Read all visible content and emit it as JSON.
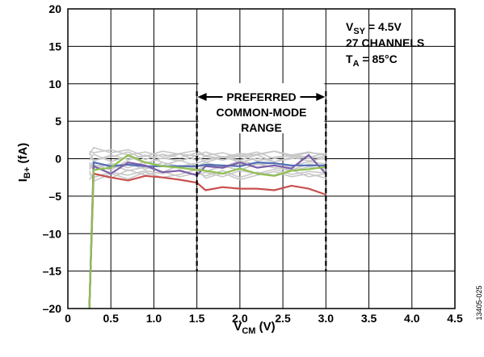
{
  "chart_data": {
    "type": "line",
    "xlabel": {
      "main": "V",
      "sub": "CM",
      "unit": " (V)"
    },
    "ylabel": {
      "main": "I",
      "sub": "B+",
      "unit": " (fA)"
    },
    "xlim": [
      0,
      4.5
    ],
    "ylim": [
      -20,
      20
    ],
    "x_ticks": [
      0,
      0.5,
      1.0,
      1.5,
      2.0,
      2.5,
      3.0,
      3.5,
      4.0,
      4.5
    ],
    "x_tick_labels": [
      "0",
      "0.5",
      "1.0",
      "1.5",
      "2.0",
      "2.5",
      "3.0",
      "3.5",
      "4.0",
      "4.5"
    ],
    "y_ticks": [
      -20,
      -15,
      -10,
      -5,
      0,
      5,
      10,
      15,
      20
    ],
    "y_tick_labels": [
      "–20",
      "–15",
      "–10",
      "–5",
      "0",
      "5",
      "10",
      "15",
      "20"
    ],
    "grid": true,
    "conditions": {
      "vsy": {
        "main": "V",
        "sub": "SY",
        "rest": " = 4.5V"
      },
      "channels": "27 CHANNELS",
      "ta": {
        "main": "T",
        "sub": "A",
        "rest": " = 85°C"
      }
    },
    "preferred_range": {
      "x": [
        1.5,
        3.0
      ],
      "y_top": 9.0,
      "y_bottom": -15.0,
      "lines": [
        "PREFERRED",
        "COMMON-MODE",
        "RANGE"
      ]
    },
    "figure_number": "13405-025",
    "x": [
      0.25,
      0.3,
      0.5,
      0.7,
      0.9,
      1.1,
      1.3,
      1.5,
      1.6,
      1.8,
      2.0,
      2.2,
      2.4,
      2.6,
      2.8,
      3.0
    ],
    "series": [
      {
        "color": "#c8c8c8",
        "values": [
          -1.2,
          -0.8,
          -1.5,
          -0.2,
          0.5,
          -0.5,
          -1.0,
          -0.6,
          -0.2,
          0.3,
          -0.5,
          0.1,
          -0.4,
          0.2,
          -0.3,
          0.1
        ]
      },
      {
        "color": "#c8c8c8",
        "values": [
          -2.0,
          -2.5,
          -1.8,
          -2.2,
          -1.6,
          -2.0,
          -1.5,
          -2.2,
          -1.8,
          -2.4,
          -1.6,
          -2.0,
          -1.4,
          -2.1,
          -1.7,
          -1.9
        ]
      },
      {
        "color": "#c8c8c8",
        "values": [
          0.5,
          1.5,
          0.8,
          1.2,
          0.3,
          1.0,
          0.6,
          0.4,
          0.9,
          0.2,
          0.7,
          0.5,
          1.0,
          0.3,
          0.8,
          0.6
        ]
      },
      {
        "color": "#c8c8c8",
        "values": [
          -0.5,
          -1.5,
          -0.6,
          -1.2,
          -0.4,
          -0.9,
          -0.2,
          -1.0,
          -0.5,
          -1.1,
          -0.3,
          -0.8,
          -0.6,
          -1.0,
          -0.4,
          -0.7
        ]
      },
      {
        "color": "#c8c8c8",
        "values": [
          -2.8,
          -2.0,
          -2.6,
          -1.5,
          -2.2,
          -1.7,
          -2.4,
          -1.9,
          -2.3,
          -1.6,
          -2.5,
          -1.8,
          -2.2,
          -1.5,
          -2.4,
          -2.0
        ]
      },
      {
        "color": "#c8c8c8",
        "values": [
          0.2,
          -0.3,
          0.5,
          -0.1,
          0.4,
          0.0,
          0.6,
          -0.2,
          0.3,
          0.1,
          0.5,
          -0.3,
          0.2,
          0.4,
          0.0,
          0.3
        ]
      },
      {
        "color": "#c8c8c8",
        "values": [
          -1.0,
          -0.4,
          -1.2,
          -0.7,
          -1.4,
          -0.5,
          -1.1,
          -1.6,
          -0.8,
          -1.3,
          -0.6,
          -1.2,
          -0.9,
          -1.5,
          -0.7,
          -1.0
        ]
      },
      {
        "color": "#c8c8c8",
        "values": [
          1.0,
          0.8,
          1.2,
          0.5,
          0.9,
          0.3,
          0.7,
          1.1,
          0.4,
          0.8,
          0.2,
          0.6,
          1.0,
          0.5,
          0.9,
          0.4
        ]
      },
      {
        "color": "#c8c8c8",
        "values": [
          -1.6,
          -3.0,
          -2.0,
          -2.7,
          -1.8,
          -2.5,
          -2.1,
          -1.4,
          -2.6,
          -1.9,
          -2.8,
          -2.2,
          -1.7,
          -2.4,
          -2.0,
          -2.6
        ]
      },
      {
        "color": "#c8c8c8",
        "values": [
          -0.2,
          0.6,
          -0.4,
          0.3,
          -0.6,
          0.1,
          -0.3,
          0.4,
          -0.5,
          0.2,
          -0.2,
          0.5,
          -0.4,
          0.0,
          0.3,
          -0.1
        ]
      },
      {
        "color": "#c8c8c8",
        "values": [
          -1.4,
          -1.0,
          -0.8,
          -1.6,
          -1.1,
          -1.8,
          -0.9,
          -1.3,
          -1.7,
          -1.0,
          -1.5,
          -0.7,
          -1.2,
          -1.6,
          -1.1,
          -1.4
        ]
      },
      {
        "color": "#c8c8c8",
        "values": [
          0.8,
          -0.2,
          0.2,
          0.9,
          -0.1,
          0.6,
          0.1,
          0.8,
          0.3,
          -0.2,
          0.4,
          0.9,
          0.0,
          0.5,
          0.2,
          0.7
        ]
      },
      {
        "color": "#4f6fb5",
        "values": [
          -20,
          -0.5,
          -1.0,
          -0.8,
          -1.0,
          -1.0,
          -1.0,
          -1.0,
          -0.8,
          -0.9,
          -1.0,
          -0.5,
          -0.6,
          -0.9,
          -0.9,
          -0.9
        ]
      },
      {
        "color": "#c8504e",
        "values": [
          -20,
          -2.0,
          -2.5,
          -2.9,
          -2.3,
          -2.5,
          -2.8,
          -3.2,
          -4.2,
          -3.8,
          -4.0,
          -4.0,
          -4.2,
          -3.6,
          -4.0,
          -4.8
        ]
      },
      {
        "color": "#7b5fa8",
        "values": [
          -20,
          -1.0,
          -2.0,
          -0.5,
          -0.9,
          -1.8,
          -1.6,
          -2.2,
          -1.0,
          -1.2,
          -0.5,
          -1.2,
          -0.9,
          -1.3,
          0.5,
          -2.0
        ]
      },
      {
        "color": "#8fbf4f",
        "values": [
          -20,
          -1.5,
          -1.2,
          0.5,
          -0.5,
          -1.0,
          -1.2,
          -1.5,
          -1.6,
          -2.0,
          -1.3,
          -2.0,
          -2.3,
          -1.6,
          -1.4,
          -1.1
        ]
      }
    ]
  }
}
